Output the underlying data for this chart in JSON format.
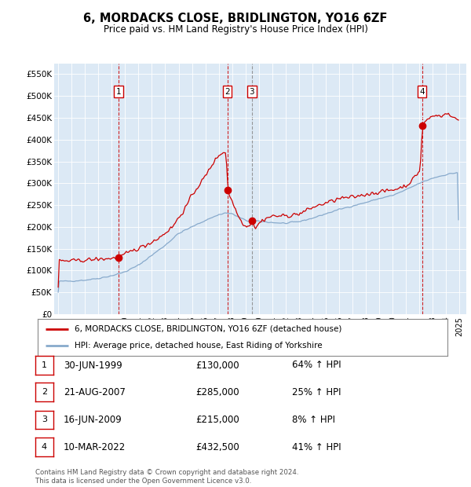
{
  "title": "6, MORDACKS CLOSE, BRIDLINGTON, YO16 6ZF",
  "subtitle": "Price paid vs. HM Land Registry's House Price Index (HPI)",
  "bg_color": "#dce9f5",
  "red_color": "#cc0000",
  "blue_color": "#88aacc",
  "ylim": [
    0,
    575000
  ],
  "yticks": [
    0,
    50000,
    100000,
    150000,
    200000,
    250000,
    300000,
    350000,
    400000,
    450000,
    500000,
    550000
  ],
  "sale_dates": [
    1999.5,
    2007.64,
    2009.46,
    2022.19
  ],
  "sale_prices": [
    130000,
    285000,
    215000,
    432500
  ],
  "sale_labels": [
    "1",
    "2",
    "3",
    "4"
  ],
  "sale_dates_str": [
    "30-JUN-1999",
    "21-AUG-2007",
    "16-JUN-2009",
    "10-MAR-2022"
  ],
  "sale_vline_colors": [
    "#cc0000",
    "#cc0000",
    "#888888",
    "#cc0000"
  ],
  "footnote": "Contains HM Land Registry data © Crown copyright and database right 2024.\nThis data is licensed under the Open Government Licence v3.0.",
  "legend_line1": "6, MORDACKS CLOSE, BRIDLINGTON, YO16 6ZF (detached house)",
  "legend_line2": "HPI: Average price, detached house, East Riding of Yorkshire",
  "table_rows": [
    [
      "1",
      "30-JUN-1999",
      "£130,000",
      "64% ↑ HPI"
    ],
    [
      "2",
      "21-AUG-2007",
      "£285,000",
      "25% ↑ HPI"
    ],
    [
      "3",
      "16-JUN-2009",
      "£215,000",
      "8% ↑ HPI"
    ],
    [
      "4",
      "10-MAR-2022",
      "£432,500",
      "41% ↑ HPI"
    ]
  ]
}
